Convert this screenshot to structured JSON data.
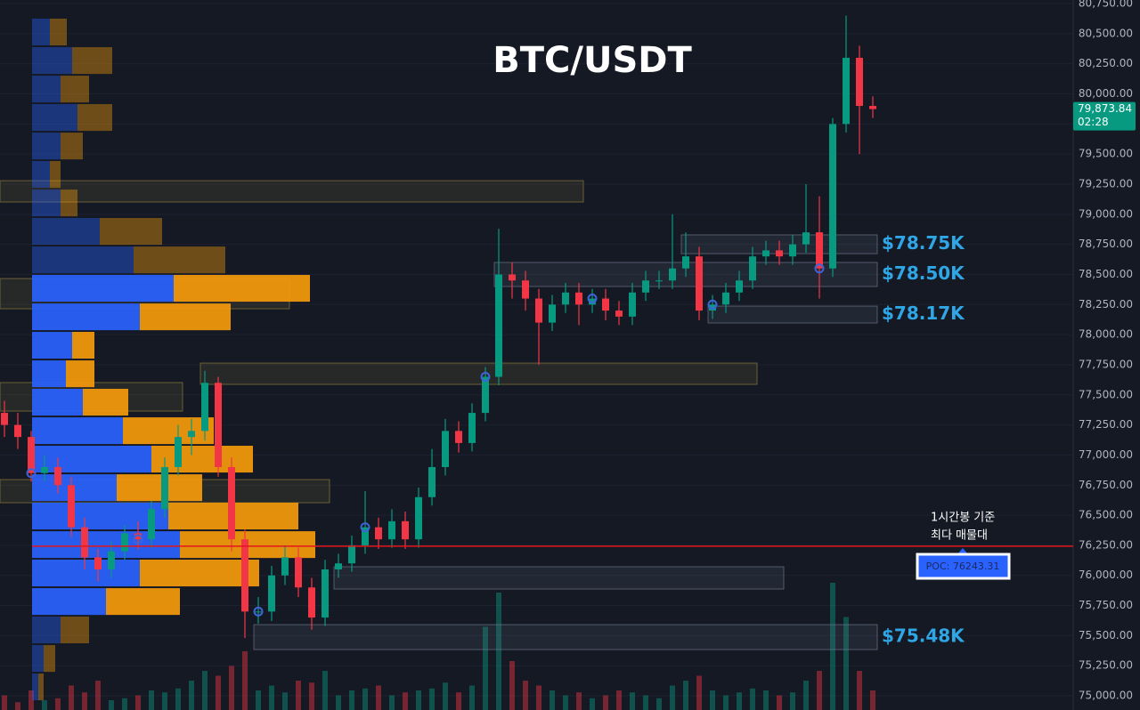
{
  "chart_data": {
    "type": "candlestick",
    "title": "BTC/USDT",
    "colors": {
      "up": "#089981",
      "down": "#f23645",
      "buy": "#2962ff",
      "sell": "#f59a0b",
      "poc": "#e5161b",
      "signal": "#3d63d8",
      "zone_label": "#2fa6e6"
    },
    "ylim": [
      74882,
      80780
    ],
    "yticks": [
      {
        "value": 75000,
        "label": "75,000.00"
      },
      {
        "value": 75250,
        "label": "75,250.00"
      },
      {
        "value": 75500,
        "label": "75,500.00"
      },
      {
        "value": 75750,
        "label": "75,750.00"
      },
      {
        "value": 76000,
        "label": "76,000.00"
      },
      {
        "value": 76250,
        "label": "76,250.00"
      },
      {
        "value": 76500,
        "label": "76,500.00"
      },
      {
        "value": 76750,
        "label": "76,750.00"
      },
      {
        "value": 77000,
        "label": "77,000.00"
      },
      {
        "value": 77250,
        "label": "77,250.00"
      },
      {
        "value": 77500,
        "label": "77,500.00"
      },
      {
        "value": 77750,
        "label": "77,750.00"
      },
      {
        "value": 78000,
        "label": "78,000.00"
      },
      {
        "value": 78250,
        "label": "78,250.00"
      },
      {
        "value": 78500,
        "label": "78,500.00"
      },
      {
        "value": 78750,
        "label": "78,750.00"
      },
      {
        "value": 79000,
        "label": "79,000.00"
      },
      {
        "value": 79250,
        "label": "79,250.00"
      },
      {
        "value": 79500,
        "label": "79,500.00"
      },
      {
        "value": 79750,
        "label": "79,750.00"
      },
      {
        "value": 80000,
        "label": "80,000.00"
      },
      {
        "value": 80250,
        "label": "80,250.00"
      },
      {
        "value": 80500,
        "label": "80,500.00"
      },
      {
        "value": 80750,
        "label": "80,750.00"
      }
    ],
    "grid": true,
    "open": [
      77350,
      77250,
      77150,
      76850,
      76900,
      76750,
      76400,
      76150,
      76050,
      76200,
      76350,
      76300,
      76550,
      76900,
      77150,
      77200,
      77600,
      76900,
      76300,
      75700,
      75700,
      76000,
      76150,
      75900,
      75650,
      76050,
      76100,
      76250,
      76400,
      76300,
      76450,
      76300,
      76650,
      76900,
      77200,
      77100,
      77350,
      77650,
      78500,
      78450,
      78300,
      78100,
      78250,
      78350,
      78250,
      78300,
      78200,
      78150,
      78350,
      78450,
      78450,
      78550,
      78650,
      78200,
      78250,
      78350,
      78450,
      78650,
      78700,
      78650,
      78750,
      78850,
      78550,
      79750,
      80300,
      79900
    ],
    "high": [
      77450,
      77350,
      77200,
      77000,
      76980,
      76820,
      76480,
      76220,
      76280,
      76420,
      76450,
      76620,
      76980,
      77250,
      77300,
      77700,
      77650,
      76980,
      76380,
      75820,
      76080,
      76250,
      76230,
      75980,
      76130,
      76180,
      76330,
      76700,
      76480,
      76550,
      76530,
      76730,
      77050,
      77300,
      77280,
      77430,
      77730,
      78880,
      78600,
      78530,
      78380,
      78330,
      78430,
      78430,
      78380,
      78380,
      78280,
      78430,
      78530,
      78530,
      79000,
      78850,
      78730,
      78330,
      78430,
      78530,
      78730,
      78780,
      78780,
      78830,
      79250,
      79150,
      79800,
      80650,
      80400,
      79980
    ],
    "low": [
      77150,
      77050,
      76780,
      76780,
      76680,
      76320,
      76050,
      75950,
      75980,
      76130,
      76220,
      76230,
      76480,
      76830,
      77000,
      77120,
      76820,
      76200,
      75480,
      75600,
      75620,
      75920,
      75820,
      75550,
      75580,
      75980,
      76030,
      76180,
      76220,
      76230,
      76220,
      76230,
      76580,
      76830,
      77020,
      77030,
      77280,
      77580,
      78300,
      78200,
      77750,
      78030,
      78180,
      78080,
      78180,
      78120,
      78080,
      78080,
      78280,
      78380,
      78380,
      78480,
      78120,
      78130,
      78180,
      78280,
      78380,
      78580,
      78580,
      78580,
      78680,
      78300,
      78480,
      79680,
      79500,
      79800
    ],
    "close": [
      77250,
      77150,
      76850,
      76900,
      76750,
      76400,
      76150,
      76050,
      76200,
      76350,
      76300,
      76550,
      76900,
      77150,
      77200,
      77600,
      76900,
      76300,
      75700,
      75700,
      76000,
      76150,
      75900,
      75650,
      76050,
      76100,
      76250,
      76400,
      76300,
      76450,
      76300,
      76650,
      76900,
      77200,
      77100,
      77350,
      77650,
      78500,
      78450,
      78300,
      78100,
      78250,
      78350,
      78250,
      78300,
      78200,
      78150,
      78350,
      78450,
      78450,
      78550,
      78650,
      78200,
      78250,
      78350,
      78450,
      78650,
      78700,
      78650,
      78750,
      78850,
      78550,
      79750,
      80300,
      79900,
      79873.84
    ],
    "volume": [
      15,
      8,
      20,
      10,
      12,
      25,
      18,
      30,
      10,
      12,
      15,
      20,
      18,
      22,
      30,
      40,
      35,
      45,
      60,
      20,
      25,
      18,
      30,
      28,
      40,
      15,
      20,
      22,
      25,
      15,
      18,
      20,
      22,
      28,
      18,
      25,
      85,
      120,
      50,
      30,
      25,
      20,
      15,
      18,
      12,
      15,
      20,
      18,
      15,
      12,
      25,
      30,
      35,
      20,
      15,
      18,
      22,
      20,
      15,
      18,
      30,
      40,
      130,
      95,
      40,
      20
    ],
    "signals": [
      2,
      10,
      19,
      27,
      36,
      44,
      53,
      61
    ],
    "volume_profile": {
      "levels": [
        80514,
        80277,
        80040,
        79804,
        79567,
        79331,
        79094,
        78858,
        78621,
        78385,
        78148,
        77912,
        77675,
        77439,
        77202,
        76966,
        76729,
        76493,
        76256,
        76020,
        75783,
        75547,
        75310,
        75074
      ],
      "buy": [
        20,
        45,
        32,
        51,
        32,
        20,
        32,
        76,
        114,
        159,
        121,
        45,
        38,
        57,
        102,
        134,
        95,
        153,
        166,
        121,
        83,
        32,
        13,
        7
      ],
      "sell": [
        19,
        45,
        32,
        39,
        25,
        12,
        19,
        70,
        103,
        153,
        102,
        25,
        32,
        51,
        102,
        114,
        96,
        146,
        152,
        134,
        83,
        32,
        13,
        6
      ],
      "value_area": [
        75700,
        78500
      ]
    },
    "zones": [
      {
        "top": 79279,
        "bottom": 79102,
        "start": 0,
        "end": 43,
        "color": "#8a7b3c"
      },
      {
        "top": 78466,
        "bottom": 78215,
        "start": 0,
        "end": 21,
        "color": "#8a7b3c"
      },
      {
        "top": 77602,
        "bottom": 77365,
        "start": 0,
        "end": 13,
        "color": "#8a7b3c"
      },
      {
        "top": 76796,
        "bottom": 76604,
        "start": 0,
        "end": 24,
        "color": "#8a7b3c"
      },
      {
        "top": 77764,
        "bottom": 77587,
        "start": 15,
        "end": 56,
        "color": "#8a7b3c"
      },
      {
        "top": 78600,
        "bottom": 78400,
        "start": 37,
        "end": 65,
        "color": "#6b7488",
        "label": "$78.50K"
      },
      {
        "top": 78829,
        "bottom": 78673,
        "start": 51,
        "end": 65,
        "color": "#6b7488",
        "label": "$78.75K"
      },
      {
        "top": 78237,
        "bottom": 78097,
        "start": 53,
        "end": 65,
        "color": "#6b7488",
        "label": "$78.17K"
      },
      {
        "top": 76072,
        "bottom": 75887,
        "start": 25,
        "end": 58,
        "color": "#6b7488"
      },
      {
        "top": 75591,
        "bottom": 75384,
        "start": 19,
        "end": 65,
        "color": "#6b7488",
        "label": "$75.48K"
      }
    ],
    "poc": {
      "value": 76243.31,
      "label": "POC: 76243.31"
    },
    "annotation": [
      "1시간봉 기준",
      "최다 매물대"
    ],
    "price_tag": {
      "value": 79873.84,
      "label": "79,873.84",
      "countdown": "02:28"
    }
  }
}
